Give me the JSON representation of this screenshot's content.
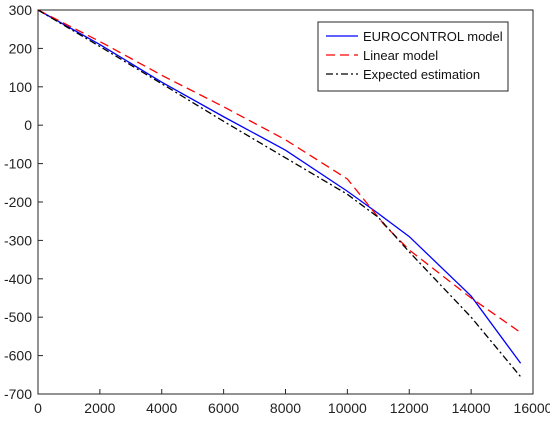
{
  "chart_data": {
    "type": "line",
    "title": "",
    "xlabel": "",
    "ylabel": "",
    "xlim": [
      0,
      16000
    ],
    "ylim": [
      -700,
      300
    ],
    "x_ticks": [
      0,
      2000,
      4000,
      6000,
      8000,
      10000,
      12000,
      14000,
      16000
    ],
    "y_ticks": [
      300,
      200,
      100,
      0,
      -100,
      -200,
      -300,
      -400,
      -500,
      -600,
      -700
    ],
    "grid": false,
    "legend_position": "top-right",
    "series": [
      {
        "name": "EUROCONTROL model",
        "color": "#0000ff",
        "dash": "solid",
        "x": [
          0,
          2000,
          4000,
          6000,
          8000,
          10000,
          11000,
          12000,
          14000,
          15600
        ],
        "y": [
          300,
          210,
          112,
          22,
          -65,
          -172,
          -230,
          -290,
          -445,
          -620
        ]
      },
      {
        "name": "Linear model",
        "color": "#ff0000",
        "dash": "dashed",
        "x": [
          0,
          2000,
          4000,
          6000,
          8000,
          10000,
          11200,
          12000,
          14000,
          15600
        ],
        "y": [
          300,
          218,
          130,
          48,
          -38,
          -140,
          -260,
          -325,
          -450,
          -540
        ]
      },
      {
        "name": "Expected estimation",
        "color": "#000000",
        "dash": "dashdot",
        "x": [
          0,
          2000,
          4000,
          6000,
          8000,
          10000,
          11000,
          12000,
          14000,
          15600
        ],
        "y": [
          300,
          205,
          108,
          10,
          -85,
          -180,
          -240,
          -330,
          -500,
          -655
        ]
      }
    ]
  }
}
